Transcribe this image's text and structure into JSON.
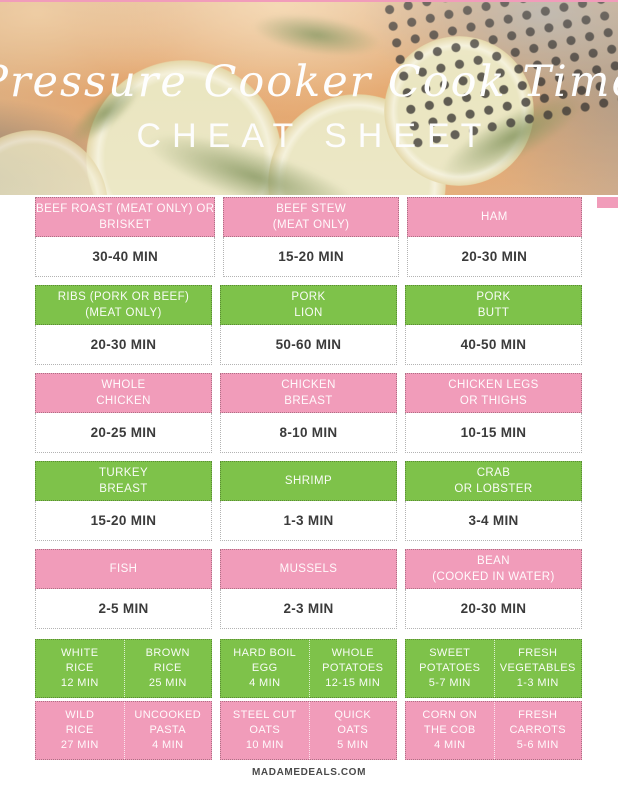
{
  "header": {
    "title": "Pressure Cooker Cook Time",
    "subtitle": "CHEAT SHEET"
  },
  "colors": {
    "pink": "#f19cba",
    "green": "#7ec24a",
    "time_text": "#3b3b3b",
    "cell_border": "#b3b3b3",
    "header_text": "#ffffff"
  },
  "grid": {
    "rows": [
      {
        "color": "pink",
        "cells": [
          {
            "line1": "BEEF ROAST (MEAT ONLY) OR",
            "line2": "BRISKET",
            "time": "30-40 MIN"
          },
          {
            "line1": "BEEF STEW",
            "line2": "(MEAT ONLY)",
            "time": "15-20 MIN"
          },
          {
            "line1": "HAM",
            "line2": "",
            "time": "20-30 MIN"
          }
        ]
      },
      {
        "color": "green",
        "cells": [
          {
            "line1": "RIBS (PORK OR BEEF)",
            "line2": "(MEAT ONLY)",
            "time": "20-30 MIN"
          },
          {
            "line1": "PORK",
            "line2": "LION",
            "time": "50-60 MIN"
          },
          {
            "line1": "PORK",
            "line2": "BUTT",
            "time": "40-50 MIN"
          }
        ]
      },
      {
        "color": "pink",
        "cells": [
          {
            "line1": "WHOLE",
            "line2": "CHICKEN",
            "time": "20-25 MIN"
          },
          {
            "line1": "CHICKEN",
            "line2": "BREAST",
            "time": "8-10 MIN"
          },
          {
            "line1": "CHICKEN LEGS",
            "line2": "OR THIGHS",
            "time": "10-15 MIN"
          }
        ]
      },
      {
        "color": "green",
        "cells": [
          {
            "line1": "TURKEY",
            "line2": "BREAST",
            "time": "15-20 MIN"
          },
          {
            "line1": "SHRIMP",
            "line2": "",
            "time": "1-3 MIN"
          },
          {
            "line1": "CRAB",
            "line2": "OR LOBSTER",
            "time": "3-4 MIN"
          }
        ]
      },
      {
        "color": "pink",
        "cells": [
          {
            "line1": "FISH",
            "line2": "",
            "time": "2-5 MIN"
          },
          {
            "line1": "MUSSELS",
            "line2": "",
            "time": "2-3 MIN"
          },
          {
            "line1": "BEAN",
            "line2": "(COOKED IN WATER)",
            "time": "20-30 MIN"
          }
        ]
      }
    ],
    "mini_rows": [
      {
        "color": "green",
        "cells": [
          {
            "line1": "WHITE",
            "line2": "RICE",
            "line3": "12 MIN"
          },
          {
            "line1": "BROWN",
            "line2": "RICE",
            "line3": "25 MIN"
          },
          {
            "line1": "HARD BOIL",
            "line2": "EGG",
            "line3": "4 MIN"
          },
          {
            "line1": "WHOLE",
            "line2": "POTATOES",
            "line3": "12-15 MIN"
          },
          {
            "line1": "SWEET",
            "line2": "POTATOES",
            "line3": "5-7 MIN"
          },
          {
            "line1": "FRESH",
            "line2": "VEGETABLES",
            "line3": "1-3 MIN"
          }
        ]
      },
      {
        "color": "pink",
        "cells": [
          {
            "line1": "WILD",
            "line2": "RICE",
            "line3": "27 MIN"
          },
          {
            "line1": "UNCOOKED",
            "line2": "PASTA",
            "line3": "4 MIN"
          },
          {
            "line1": "STEEL CUT",
            "line2": "OATS",
            "line3": "10 MIN"
          },
          {
            "line1": "QUICK",
            "line2": "OATS",
            "line3": "5 MIN"
          },
          {
            "line1": "CORN ON",
            "line2": "THE COB",
            "line3": "4 MIN"
          },
          {
            "line1": "FRESH",
            "line2": "CARROTS",
            "line3": "5-6 MIN"
          }
        ]
      }
    ]
  },
  "footer": {
    "site": "MADAMEDEALS.COM"
  }
}
